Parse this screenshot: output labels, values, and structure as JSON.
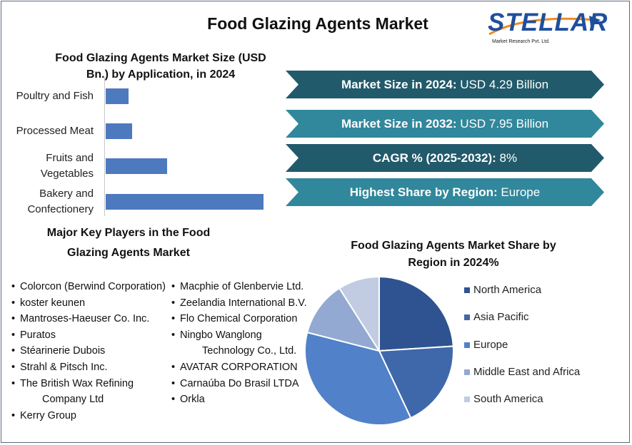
{
  "title": "Food Glazing Agents Market",
  "logo": {
    "name": "STELLAR",
    "tagline": "Market Research Pvt. Ltd."
  },
  "stats": [
    {
      "label": "Market Size in 2024:",
      "value": " USD 4.29 Billion",
      "color": "#215a6b"
    },
    {
      "label": "Market Size in 2032:",
      "value": " USD 7.95 Billion",
      "color": "#31879b"
    },
    {
      "label": "CAGR % (2025-2032):",
      "value": " 8%",
      "color": "#215a6b"
    },
    {
      "label": "Highest Share by Region:",
      "value": " Europe",
      "color": "#31879b"
    }
  ],
  "players": {
    "title_line1": "Major Key Players in the Food",
    "title_line2": "Glazing Agents Market",
    "col1": [
      "Colorcon (Berwind Corporation)",
      "koster keunen",
      "Mantroses-Haeuser Co. Inc.",
      "Puratos",
      "Stéarinerie Dubois",
      "Strahl & Pitsch Inc.",
      "The British Wax Refining Company Ltd",
      "Kerry Group"
    ],
    "col2": [
      "Macphie of Glenbervie Ltd.",
      "Zeelandia International B.V.",
      "Flo Chemical Corporation",
      "Ningbo Wanglong Technology Co., Ltd.",
      "AVATAR CORPORATION",
      "Carnaúba Do Brasil LTDA",
      "Orkla"
    ]
  },
  "chart_data": [
    {
      "type": "bar",
      "orientation": "horizontal",
      "title_line1": "Food Glazing Agents Market Size (USD",
      "title_line2": "Bn.) by Application, in 2024",
      "categories": [
        "Poultry and Fish",
        "Processed Meat",
        "Fruits and Vegetables",
        "Bakery and Confectionery"
      ],
      "category_lines": [
        [
          "Poultry and Fish"
        ],
        [
          "Processed Meat"
        ],
        [
          "Fruits and",
          "Vegetables"
        ],
        [
          "Bakery and",
          "Confectionery"
        ]
      ],
      "values": [
        0.32,
        0.37,
        0.86,
        2.21
      ],
      "xlim": [
        0,
        2.21
      ],
      "color": "#4d79bf",
      "grid": false
    },
    {
      "type": "pie",
      "title_line1": "Food Glazing Agents Market Share by",
      "title_line2": "Region in 2024%",
      "legend_position": "right",
      "labels": [
        "North America",
        "Asia Pacific",
        "Europe",
        "Middle East and Africa",
        "South America"
      ],
      "values": [
        24,
        19,
        36,
        12,
        9
      ],
      "colors": [
        "#2f5391",
        "#3f68aa",
        "#5181c8",
        "#93a9d2",
        "#c1cce3"
      ]
    }
  ]
}
